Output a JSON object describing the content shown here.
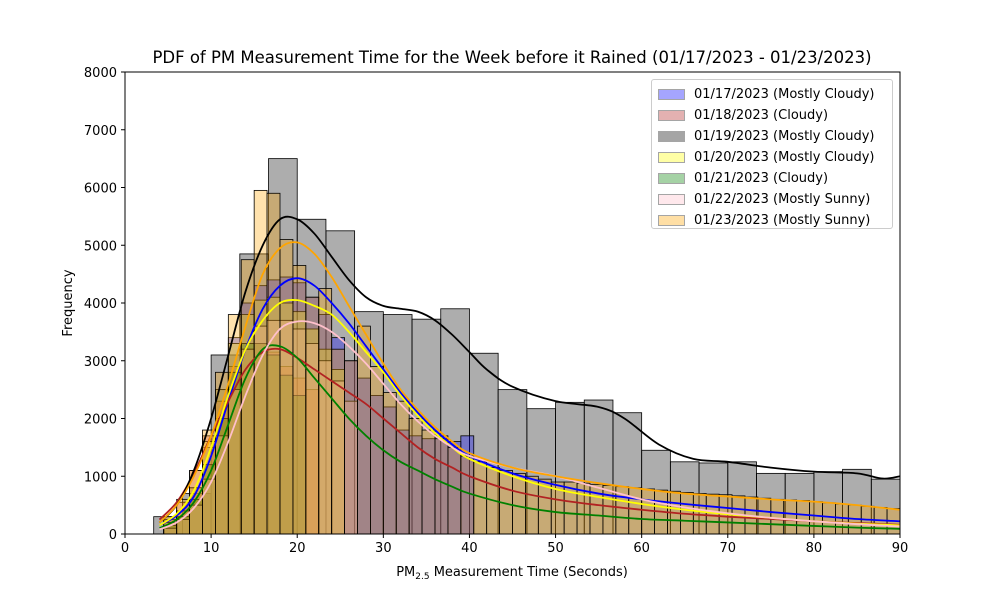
{
  "chart_data": {
    "type": "histogram",
    "title": "PDF of PM Measurement Time for the Week before it Rained (01/17/2023 - 01/23/2023)",
    "xlabel_main": "PM",
    "xlabel_sub": "2.5",
    "xlabel_rest": " Measurement Time (Seconds)",
    "ylabel": "Frequency",
    "xlim": [
      0,
      90
    ],
    "ylim": [
      0,
      8000
    ],
    "x_ticks": [
      0,
      10,
      20,
      30,
      40,
      50,
      60,
      70,
      80,
      90
    ],
    "y_ticks": [
      0,
      1000,
      2000,
      3000,
      4000,
      5000,
      6000,
      7000,
      8000
    ],
    "legend_position": "upper right",
    "series": [
      {
        "name": "01/17/2023 (Mostly Cloudy)",
        "color": "#0000ff",
        "kde_x": [
          4,
          6,
          8,
          10,
          12,
          14,
          16,
          18,
          20,
          22,
          24,
          26,
          28,
          30,
          32,
          34,
          36,
          38,
          40,
          45,
          50,
          55,
          60,
          65,
          70,
          75,
          80,
          85,
          90
        ],
        "kde_y": [
          150,
          320,
          650,
          1350,
          2300,
          3200,
          3900,
          4300,
          4430,
          4300,
          4000,
          3650,
          3250,
          2850,
          2450,
          2100,
          1800,
          1550,
          1350,
          1050,
          850,
          700,
          600,
          520,
          450,
          380,
          320,
          260,
          220
        ],
        "bin_width": 1.5,
        "bin_starts": [
          4.5,
          6,
          7.5,
          9,
          10.5,
          12,
          13.5,
          15,
          16.5,
          18,
          19.5,
          21,
          22.5,
          24,
          25.5,
          27,
          28.5,
          30,
          31.5,
          33,
          34.5,
          36,
          37.5,
          39
        ],
        "bin_values": [
          200,
          400,
          800,
          1500,
          2500,
          3400,
          4000,
          4300,
          4400,
          4450,
          4350,
          4100,
          3800,
          3400,
          3000,
          2700,
          2400,
          2200,
          1800,
          1700,
          1650,
          1700,
          1600,
          1700
        ]
      },
      {
        "name": "01/18/2023 (Cloudy)",
        "color": "#b22222",
        "kde_x": [
          4,
          6,
          8,
          10,
          12,
          14,
          16,
          18,
          20,
          22,
          24,
          26,
          28,
          30,
          32,
          34,
          36,
          38,
          40,
          45,
          50,
          55,
          60,
          65,
          70,
          75,
          80,
          85,
          90
        ],
        "kde_y": [
          250,
          550,
          1050,
          1700,
          2300,
          2850,
          3150,
          3200,
          3050,
          2850,
          2650,
          2450,
          2250,
          2000,
          1750,
          1500,
          1300,
          1150,
          1000,
          750,
          600,
          500,
          420,
          350,
          300,
          260,
          220,
          190,
          160
        ],
        "bin_width": 1.5,
        "bin_starts": [
          4.5,
          6,
          7.5,
          9,
          10.5,
          12,
          13.5,
          15,
          16.5,
          18,
          19.5,
          21
        ],
        "bin_values": [
          250,
          550,
          1100,
          1700,
          2300,
          2900,
          3200,
          3300,
          3150,
          2900,
          2700,
          2500
        ]
      },
      {
        "name": "01/19/2023 (Mostly Cloudy)",
        "color": "#000000",
        "kde_x": [
          4,
          6,
          8,
          10,
          12,
          14,
          16,
          18,
          20,
          22,
          24,
          26,
          28,
          30,
          32,
          34,
          36,
          38,
          40,
          42,
          45,
          50,
          55,
          58,
          62,
          66,
          70,
          75,
          80,
          85,
          88,
          90
        ],
        "kde_y": [
          200,
          500,
          1100,
          2000,
          3100,
          4200,
          5000,
          5450,
          5450,
          5200,
          4800,
          4400,
          4100,
          3950,
          3900,
          3850,
          3700,
          3450,
          3150,
          2850,
          2550,
          2300,
          2200,
          2000,
          1550,
          1300,
          1250,
          1150,
          1080,
          1050,
          960,
          1000
        ],
        "bin_width": 3.333,
        "bin_starts": [
          3.333,
          6.667,
          10,
          13.333,
          16.667,
          20,
          23.333,
          26.667,
          30,
          33.333,
          36.667,
          40,
          43.333,
          46.667,
          50,
          53.333,
          56.667,
          60,
          63.333,
          66.667,
          70,
          73.333,
          76.667,
          80,
          83.333,
          86.667
        ],
        "bin_values": [
          300,
          700,
          3100,
          4850,
          6500,
          5450,
          5250,
          3850,
          3800,
          3720,
          3900,
          3130,
          2500,
          2170,
          2280,
          2320,
          2100,
          1450,
          1250,
          1230,
          1250,
          1050,
          1050,
          1080,
          1120,
          950
        ]
      },
      {
        "name": "01/20/2023 (Mostly Cloudy)",
        "color": "#ffff00",
        "kde_x": [
          4,
          6,
          8,
          10,
          12,
          14,
          16,
          18,
          20,
          22,
          24,
          26,
          28,
          30,
          32,
          34,
          36,
          38,
          40,
          45,
          50,
          55,
          60,
          65,
          70,
          75,
          80,
          85,
          90
        ],
        "kde_y": [
          150,
          350,
          750,
          1500,
          2400,
          3200,
          3700,
          4000,
          4050,
          3950,
          3800,
          3500,
          3150,
          2800,
          2400,
          2050,
          1750,
          1500,
          1300,
          1000,
          780,
          640,
          520,
          420,
          340,
          280,
          220,
          180,
          150
        ],
        "bin_width": 1.5,
        "bin_starts": [
          4.5,
          6,
          7.5,
          9,
          10.5,
          12,
          13.5,
          15,
          16.5,
          18,
          19.5,
          21,
          22.5,
          24
        ],
        "bin_values": [
          200,
          400,
          800,
          1600,
          2500,
          3300,
          3800,
          4050,
          4100,
          4000,
          3850,
          3550,
          3200,
          2850
        ]
      },
      {
        "name": "01/21/2023 (Cloudy)",
        "color": "#008000",
        "kde_x": [
          4,
          6,
          8,
          10,
          12,
          14,
          16,
          18,
          20,
          22,
          24,
          26,
          28,
          30,
          32,
          34,
          36,
          38,
          40,
          45,
          50,
          55,
          60,
          65,
          70,
          75,
          80,
          85,
          90
        ],
        "kde_y": [
          100,
          250,
          550,
          1100,
          1900,
          2700,
          3200,
          3250,
          3050,
          2700,
          2350,
          2000,
          1700,
          1450,
          1250,
          1100,
          950,
          820,
          700,
          500,
          380,
          320,
          260,
          230,
          200,
          170,
          140,
          110,
          90
        ],
        "bin_width": 1.5,
        "bin_starts": [
          4.5,
          6,
          7.5,
          9,
          10.5,
          12,
          13.5,
          15,
          16.5,
          18,
          19.5
        ],
        "bin_values": [
          150,
          300,
          600,
          1200,
          2000,
          2800,
          3300,
          3300,
          3100,
          2750,
          2400
        ]
      },
      {
        "name": "01/22/2023 (Mostly Sunny)",
        "color": "#ffc0cb",
        "kde_x": [
          4,
          6,
          8,
          10,
          12,
          14,
          16,
          18,
          20,
          22,
          24,
          26,
          28,
          30,
          32,
          34,
          36,
          38,
          40,
          45,
          50,
          55,
          60,
          65,
          70,
          75,
          80,
          85,
          90
        ],
        "kde_y": [
          80,
          200,
          450,
          900,
          1600,
          2400,
          3100,
          3550,
          3680,
          3650,
          3500,
          3250,
          2950,
          2600,
          2250,
          1950,
          1700,
          1500,
          1350,
          1150,
          1000,
          800,
          600,
          460,
          360,
          280,
          220,
          170,
          130
        ],
        "bin_width": 1.5,
        "bin_starts": [
          4.5,
          6,
          7.5,
          9,
          10.5,
          12,
          13.5,
          15,
          16.5,
          18,
          19.5,
          21,
          22.5,
          24,
          25.5
        ],
        "bin_values": [
          100,
          250,
          500,
          950,
          1700,
          2500,
          3200,
          3600,
          3700,
          3700,
          3550,
          3300,
          3000,
          2650,
          2300
        ]
      },
      {
        "name": "01/23/2023 (Mostly Sunny)",
        "color": "#ffa500",
        "kde_x": [
          4,
          6,
          8,
          10,
          12,
          14,
          16,
          18,
          20,
          22,
          24,
          26,
          28,
          30,
          32,
          34,
          36,
          38,
          40,
          45,
          50,
          55,
          60,
          65,
          70,
          75,
          80,
          85,
          90
        ],
        "kde_y": [
          200,
          500,
          1000,
          1700,
          2600,
          3600,
          4500,
          4950,
          5050,
          4850,
          4450,
          3950,
          3450,
          2950,
          2500,
          2150,
          1850,
          1600,
          1400,
          1150,
          1000,
          880,
          780,
          700,
          650,
          600,
          560,
          500,
          420
        ],
        "bin_width": 1.5,
        "bin_starts": [
          4.5,
          6,
          7.5,
          9,
          10.5,
          12,
          13.5,
          15,
          16.5,
          18,
          19.5,
          21,
          22.5,
          24,
          25.5,
          27,
          28.5,
          30,
          31.5,
          33,
          34.5,
          36,
          37.5,
          39,
          40.5,
          42,
          43.5,
          45,
          46.5,
          48,
          49.5,
          51,
          52.5,
          54,
          55.5,
          57,
          58.5,
          60,
          61.5,
          63,
          64.5,
          66,
          67.5,
          69,
          70.5,
          72,
          73.5,
          75,
          76.5,
          78,
          79.5,
          81,
          82.5,
          84,
          85.5,
          87,
          88.5
        ],
        "bin_values": [
          300,
          600,
          1100,
          1800,
          2800,
          3800,
          4750,
          5950,
          5900,
          5100,
          4650,
          4100,
          4250,
          3200,
          3000,
          3600,
          2900,
          2450,
          2300,
          2000,
          1800,
          1650,
          1500,
          1350,
          1250,
          1150,
          1100,
          1050,
          1000,
          950,
          900,
          900,
          880,
          860,
          840,
          820,
          800,
          780,
          760,
          740,
          720,
          700,
          690,
          680,
          660,
          640,
          620,
          600,
          590,
          580,
          560,
          540,
          520,
          500,
          480,
          460,
          440
        ]
      }
    ]
  }
}
